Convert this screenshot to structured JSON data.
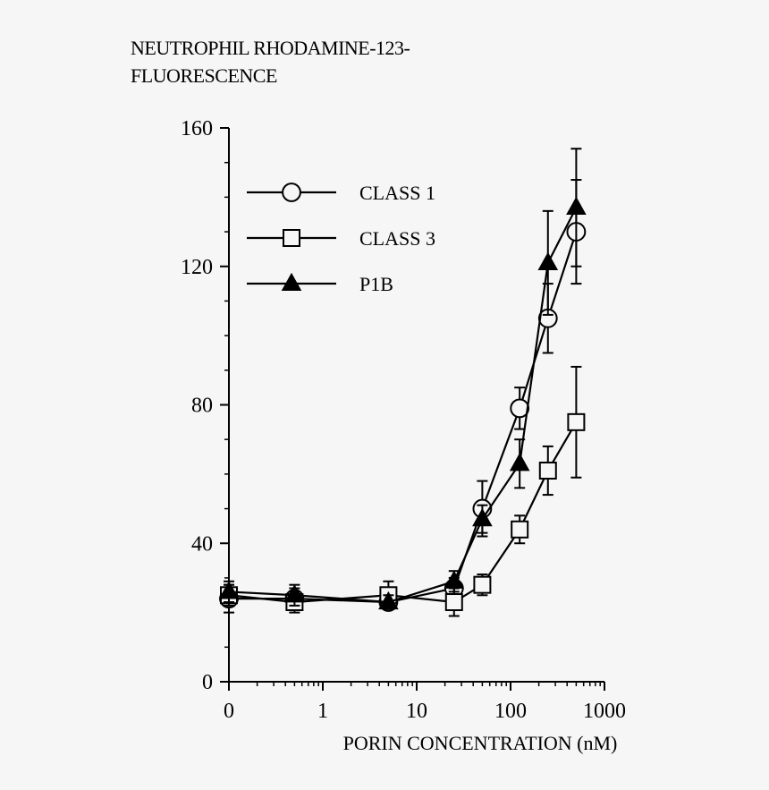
{
  "chart_data": {
    "type": "line",
    "title_lines": [
      "NEUTROPHIL RHODAMINE-123-",
      "FLUORESCENCE"
    ],
    "xlabel": "PORIN CONCENTRATION (nM)",
    "ylabel": "",
    "x_scale": "log-with-zero",
    "x_ticks": [
      {
        "value": 0,
        "label": "0"
      },
      {
        "value": 1,
        "label": "1"
      },
      {
        "value": 10,
        "label": "10"
      },
      {
        "value": 100,
        "label": "100"
      },
      {
        "value": 1000,
        "label": "1000"
      }
    ],
    "ylim": [
      0,
      160
    ],
    "y_ticks": [
      0,
      40,
      80,
      120,
      160
    ],
    "legend_position": "top-left",
    "series": [
      {
        "name": "CLASS 1",
        "marker": "open-circle",
        "points": [
          {
            "x": 0,
            "y": 24,
            "err": 4
          },
          {
            "x": 0.5,
            "y": 24,
            "err": 3
          },
          {
            "x": 5,
            "y": 23,
            "err": 2
          },
          {
            "x": 25,
            "y": 27,
            "err": 3
          },
          {
            "x": 50,
            "y": 50,
            "err": 8
          },
          {
            "x": 125,
            "y": 79,
            "err": 6
          },
          {
            "x": 250,
            "y": 105,
            "err": 10
          },
          {
            "x": 500,
            "y": 130,
            "err": 15
          }
        ]
      },
      {
        "name": "CLASS 3",
        "marker": "open-square",
        "points": [
          {
            "x": 0,
            "y": 25,
            "err": 3
          },
          {
            "x": 0.5,
            "y": 23,
            "err": 3
          },
          {
            "x": 5,
            "y": 25,
            "err": 4
          },
          {
            "x": 25,
            "y": 23,
            "err": 4
          },
          {
            "x": 50,
            "y": 28,
            "err": 3
          },
          {
            "x": 125,
            "y": 44,
            "err": 4
          },
          {
            "x": 250,
            "y": 61,
            "err": 7
          },
          {
            "x": 500,
            "y": 75,
            "err": 16
          }
        ]
      },
      {
        "name": "P1B",
        "marker": "filled-triangle",
        "points": [
          {
            "x": 0,
            "y": 26,
            "err": 3
          },
          {
            "x": 0.5,
            "y": 25,
            "err": 3
          },
          {
            "x": 5,
            "y": 23,
            "err": 2
          },
          {
            "x": 25,
            "y": 29,
            "err": 3
          },
          {
            "x": 50,
            "y": 47,
            "err": 4
          },
          {
            "x": 125,
            "y": 63,
            "err": 7
          },
          {
            "x": 250,
            "y": 121,
            "err": 15
          },
          {
            "x": 500,
            "y": 137,
            "err": 17
          }
        ]
      }
    ]
  }
}
